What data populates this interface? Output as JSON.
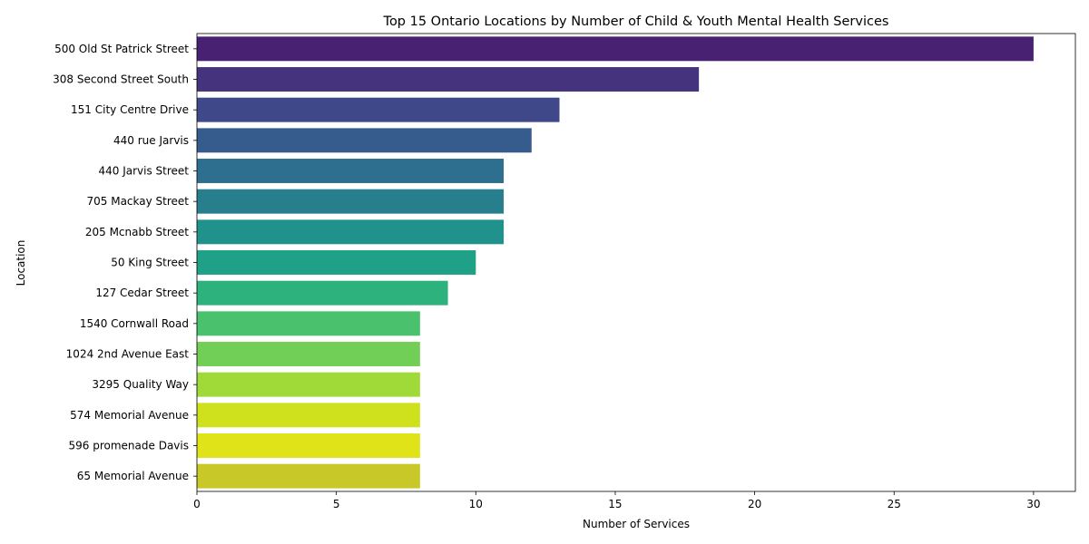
{
  "chart_data": {
    "type": "bar",
    "orientation": "horizontal",
    "title": "Top 15 Ontario Locations by Number of Child & Youth Mental Health Services",
    "xlabel": "Number of Services",
    "ylabel": "Location",
    "xlim": [
      0,
      31.5
    ],
    "xticks": [
      0,
      5,
      10,
      15,
      20,
      25,
      30
    ],
    "grid": false,
    "legend": "none",
    "categories": [
      "500 Old St Patrick Street",
      "308 Second Street South",
      "151 City Centre Drive",
      "440 rue Jarvis",
      "440 Jarvis Street",
      "705 Mackay Street",
      "205 Mcnabb Street",
      "50 King Street",
      "127 Cedar Street",
      "1540 Cornwall Road",
      "1024 2nd Avenue East",
      "3295 Quality Way",
      "574 Memorial Avenue",
      "596 promenade Davis",
      "65 Memorial Avenue"
    ],
    "values": [
      30,
      18,
      13,
      12,
      11,
      11,
      11,
      10,
      9,
      8,
      8,
      8,
      8,
      8,
      8
    ],
    "colors": [
      "#482173",
      "#46337e",
      "#3f4889",
      "#365c8d",
      "#2e6e8e",
      "#277f8e",
      "#21918c",
      "#1fa187",
      "#2db27d",
      "#4ac16d",
      "#71cf57",
      "#a0da39",
      "#cfe11c",
      "#dfe318",
      "#c8c929"
    ]
  }
}
